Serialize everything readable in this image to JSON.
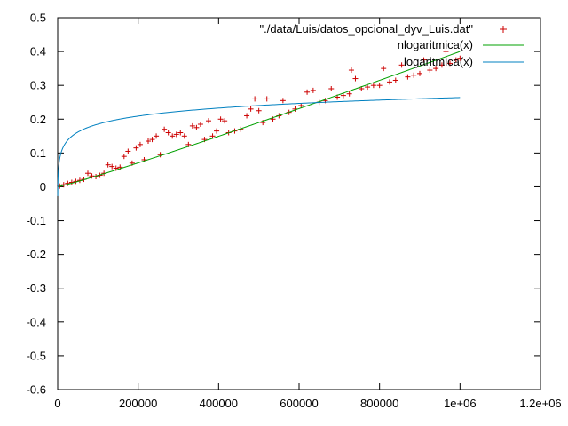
{
  "chart_data": {
    "type": "scatter",
    "title": "",
    "xlabel": "",
    "ylabel": "",
    "xlim": [
      0,
      1200000
    ],
    "ylim": [
      -0.6,
      0.5
    ],
    "grid": false,
    "legend_position": "top-right",
    "x_ticks": [
      {
        "value": 0,
        "label": "0"
      },
      {
        "value": 200000,
        "label": "200000"
      },
      {
        "value": 400000,
        "label": "400000"
      },
      {
        "value": 600000,
        "label": "600000"
      },
      {
        "value": 800000,
        "label": "800000"
      },
      {
        "value": 1000000,
        "label": "1e+06"
      },
      {
        "value": 1200000,
        "label": "1.2e+06"
      }
    ],
    "y_ticks": [
      {
        "value": -0.6,
        "label": "-0.6"
      },
      {
        "value": -0.5,
        "label": "-0.5"
      },
      {
        "value": -0.4,
        "label": "-0.4"
      },
      {
        "value": -0.3,
        "label": "-0.3"
      },
      {
        "value": -0.2,
        "label": "-0.2"
      },
      {
        "value": -0.1,
        "label": "-0.1"
      },
      {
        "value": 0,
        "label": "0"
      },
      {
        "value": 0.1,
        "label": "0.1"
      },
      {
        "value": 0.2,
        "label": "0.2"
      },
      {
        "value": 0.3,
        "label": "0.3"
      },
      {
        "value": 0.4,
        "label": "0.4"
      },
      {
        "value": 0.5,
        "label": "0.5"
      }
    ],
    "series": [
      {
        "name": "\"./data/Luis/datos_opcional_dyv_Luis.dat\"",
        "kind": "points",
        "marker": "plus",
        "color": "#cc0000",
        "points": [
          [
            5000,
            0.002
          ],
          [
            15000,
            0.006
          ],
          [
            25000,
            0.01
          ],
          [
            35000,
            0.013
          ],
          [
            45000,
            0.016
          ],
          [
            55000,
            0.019
          ],
          [
            65000,
            0.022
          ],
          [
            75000,
            0.04
          ],
          [
            85000,
            0.032
          ],
          [
            95000,
            0.03
          ],
          [
            105000,
            0.034
          ],
          [
            115000,
            0.04
          ],
          [
            125000,
            0.065
          ],
          [
            135000,
            0.06
          ],
          [
            145000,
            0.055
          ],
          [
            155000,
            0.058
          ],
          [
            165000,
            0.09
          ],
          [
            175000,
            0.105
          ],
          [
            185000,
            0.07
          ],
          [
            195000,
            0.115
          ],
          [
            205000,
            0.125
          ],
          [
            215000,
            0.08
          ],
          [
            225000,
            0.135
          ],
          [
            235000,
            0.14
          ],
          [
            245000,
            0.15
          ],
          [
            255000,
            0.095
          ],
          [
            265000,
            0.17
          ],
          [
            275000,
            0.16
          ],
          [
            285000,
            0.15
          ],
          [
            295000,
            0.155
          ],
          [
            305000,
            0.16
          ],
          [
            315000,
            0.15
          ],
          [
            325000,
            0.125
          ],
          [
            335000,
            0.18
          ],
          [
            345000,
            0.175
          ],
          [
            355000,
            0.185
          ],
          [
            365000,
            0.14
          ],
          [
            375000,
            0.195
          ],
          [
            385000,
            0.15
          ],
          [
            395000,
            0.165
          ],
          [
            405000,
            0.2
          ],
          [
            415000,
            0.195
          ],
          [
            425000,
            0.16
          ],
          [
            440000,
            0.165
          ],
          [
            455000,
            0.17
          ],
          [
            470000,
            0.21
          ],
          [
            480000,
            0.23
          ],
          [
            490000,
            0.26
          ],
          [
            500000,
            0.225
          ],
          [
            510000,
            0.19
          ],
          [
            520000,
            0.26
          ],
          [
            535000,
            0.2
          ],
          [
            550000,
            0.21
          ],
          [
            560000,
            0.255
          ],
          [
            575000,
            0.22
          ],
          [
            590000,
            0.23
          ],
          [
            605000,
            0.24
          ],
          [
            620000,
            0.28
          ],
          [
            635000,
            0.285
          ],
          [
            650000,
            0.25
          ],
          [
            665000,
            0.255
          ],
          [
            680000,
            0.29
          ],
          [
            695000,
            0.265
          ],
          [
            710000,
            0.27
          ],
          [
            725000,
            0.275
          ],
          [
            730000,
            0.345
          ],
          [
            740000,
            0.32
          ],
          [
            755000,
            0.29
          ],
          [
            770000,
            0.295
          ],
          [
            785000,
            0.3
          ],
          [
            800000,
            0.3
          ],
          [
            810000,
            0.35
          ],
          [
            825000,
            0.31
          ],
          [
            840000,
            0.315
          ],
          [
            855000,
            0.36
          ],
          [
            870000,
            0.325
          ],
          [
            885000,
            0.33
          ],
          [
            900000,
            0.335
          ],
          [
            910000,
            0.375
          ],
          [
            925000,
            0.345
          ],
          [
            940000,
            0.35
          ],
          [
            955000,
            0.36
          ],
          [
            965000,
            0.4
          ],
          [
            975000,
            0.365
          ],
          [
            990000,
            0.375
          ],
          [
            1000000,
            0.38
          ]
        ]
      },
      {
        "name": "nlogaritmica(x)",
        "kind": "line",
        "function": "nlog",
        "color": "#00a000",
        "x_range": [
          1000,
          1000000
        ]
      },
      {
        "name": "logaritmica(x)",
        "kind": "line",
        "function": "log",
        "color": "#0080c0",
        "x_range": [
          200,
          1000000
        ]
      }
    ]
  }
}
